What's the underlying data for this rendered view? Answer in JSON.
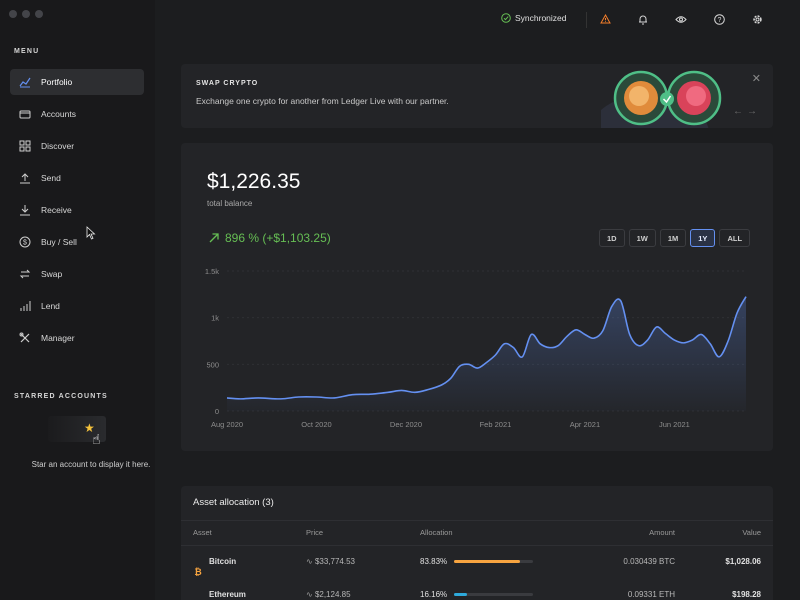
{
  "sidebar": {
    "menu_title": "MENU",
    "items": [
      {
        "label": "Portfolio",
        "icon": "chart-icon"
      },
      {
        "label": "Accounts",
        "icon": "folder-icon"
      },
      {
        "label": "Discover",
        "icon": "grid-icon"
      },
      {
        "label": "Send",
        "icon": "send-icon"
      },
      {
        "label": "Receive",
        "icon": "receive-icon"
      },
      {
        "label": "Buy / Sell",
        "icon": "dollar-icon"
      },
      {
        "label": "Swap",
        "icon": "swap-icon"
      },
      {
        "label": "Lend",
        "icon": "lend-icon"
      },
      {
        "label": "Manager",
        "icon": "tools-icon"
      }
    ],
    "active_index": 0,
    "starred_title": "STARRED ACCOUNTS",
    "starred_empty_text": "Star an account to display it here."
  },
  "topbar": {
    "sync_status": "Synchronized",
    "icons": [
      "warning-icon",
      "bell-icon",
      "eye-icon",
      "help-icon",
      "settings-icon"
    ]
  },
  "banner": {
    "title": "SWAP CRYPTO",
    "description": "Exchange one crypto for another from Ledger Live with our partner."
  },
  "balance": {
    "total": "$1,226.35",
    "label": "total balance",
    "change": "896 % (+$1,103.25)",
    "ranges": [
      "1D",
      "1W",
      "1M",
      "1Y",
      "ALL"
    ],
    "active_range": "1Y"
  },
  "chart_data": {
    "type": "area",
    "title": "",
    "xlabel": "",
    "ylabel": "",
    "ylim": [
      0,
      1500
    ],
    "yticks": [
      "0",
      "500",
      "1k",
      "1.5k"
    ],
    "ytick_values": [
      0,
      500,
      1000,
      1500
    ],
    "xticks": [
      "Aug 2020",
      "Oct 2020",
      "Dec 2020",
      "Feb 2021",
      "Apr 2021",
      "Jun 2021"
    ],
    "xtick_months": [
      0,
      2,
      4,
      6,
      8,
      10
    ],
    "grid": "horizontal",
    "color": "#6490f1",
    "series": [
      {
        "x_month": [
          0,
          0.3,
          0.7,
          1.2,
          1.6,
          2.0,
          2.4,
          2.8,
          3.2,
          3.6,
          3.9,
          4.2,
          4.5,
          4.8,
          5.0,
          5.2,
          5.4,
          5.6,
          5.8,
          6.0,
          6.2,
          6.4,
          6.6,
          6.8,
          7.0,
          7.2,
          7.4,
          7.6,
          7.8,
          8.0,
          8.2,
          8.4,
          8.6,
          8.8,
          9.0,
          9.2,
          9.4,
          9.6,
          9.8,
          10.0,
          10.2,
          10.4,
          10.6,
          10.8,
          11.0,
          11.2,
          11.4,
          11.6
        ],
        "values": [
          140,
          130,
          140,
          130,
          150,
          150,
          140,
          175,
          180,
          200,
          220,
          200,
          230,
          280,
          350,
          480,
          500,
          460,
          520,
          600,
          720,
          680,
          580,
          820,
          720,
          680,
          700,
          800,
          870,
          820,
          780,
          860,
          1120,
          1180,
          820,
          700,
          760,
          900,
          830,
          760,
          730,
          760,
          820,
          720,
          580,
          750,
          1050,
          1226
        ]
      }
    ]
  },
  "allocation": {
    "title": "Asset allocation (3)",
    "columns": {
      "asset": "Asset",
      "price": "Price",
      "allocation": "Allocation",
      "amount": "Amount",
      "value": "Value"
    },
    "rows": [
      {
        "name": "Bitcoin",
        "icon": "bitcoin-icon",
        "price": "$33,774.53",
        "allocation": "83.83%",
        "alloc_fraction": 0.8383,
        "amount": "0.030439 BTC",
        "value": "$1,028.06",
        "color": "#f7a440"
      },
      {
        "name": "Ethereum",
        "icon": "ethereum-icon",
        "price": "$2,124.85",
        "allocation": "16.16%",
        "alloc_fraction": 0.1616,
        "amount": "0.09331 ETH",
        "value": "$198.28",
        "color": "#2eaadc"
      }
    ]
  }
}
